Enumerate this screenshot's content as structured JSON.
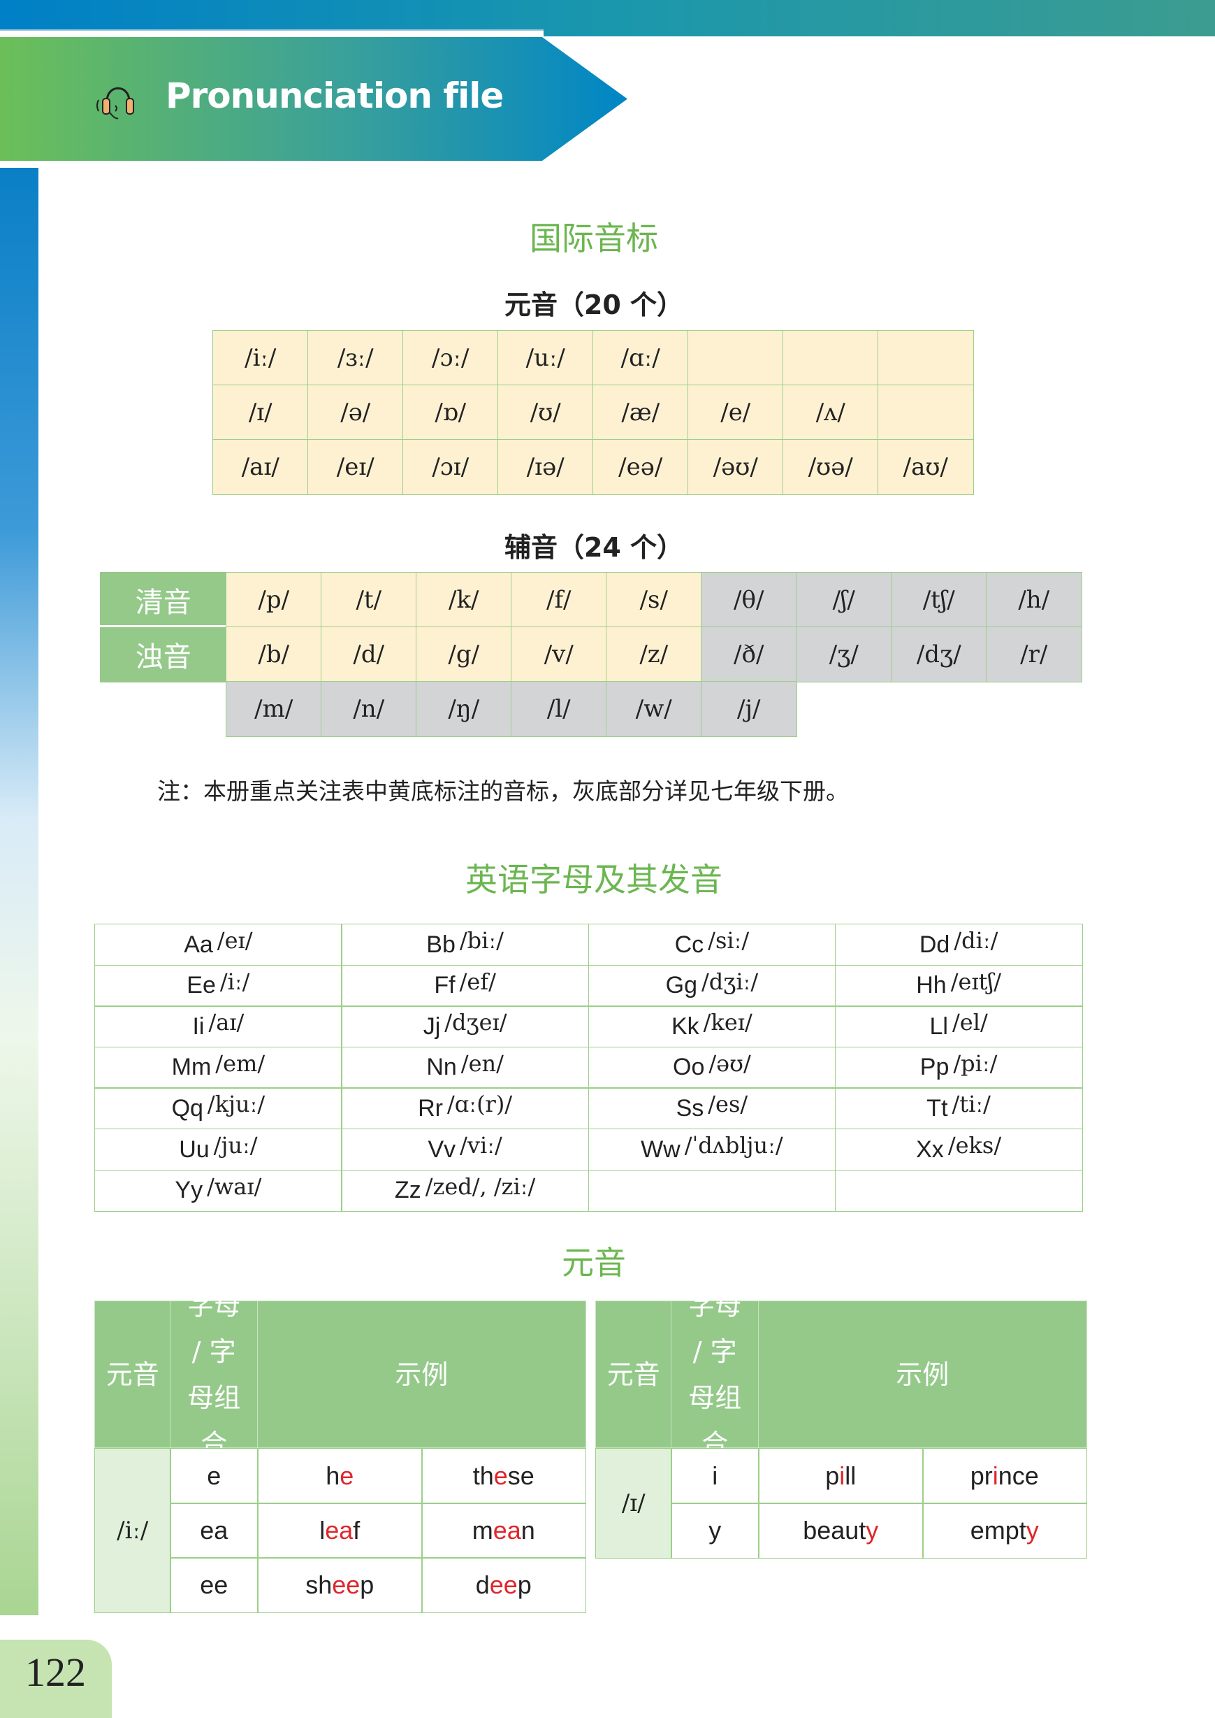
{
  "header": {
    "title": "Pronunciation file",
    "icon": "headset-icon"
  },
  "page_number": "122",
  "ipa_section": {
    "title": "国际音标",
    "vowels_title": "元音（20 个）",
    "vowels": [
      [
        "/iː/",
        "/ɜː/",
        "/ɔː/",
        "/uː/",
        "/ɑː/",
        "",
        "",
        ""
      ],
      [
        "/ɪ/",
        "/ə/",
        "/ɒ/",
        "/ʊ/",
        "/æ/",
        "/e/",
        "/ʌ/",
        ""
      ],
      [
        "/aɪ/",
        "/eɪ/",
        "/ɔɪ/",
        "/ɪə/",
        "/eə/",
        "/əʊ/",
        "/ʊə/",
        "/aʊ/"
      ]
    ],
    "consonants_title": "辅音（24 个）",
    "consonant_rows": [
      {
        "label": "清音",
        "cells": [
          "/p/",
          "/t/",
          "/k/",
          "/f/",
          "/s/",
          "/θ/",
          "/ʃ/",
          "/tʃ/",
          "/h/"
        ]
      },
      {
        "label": "浊音",
        "cells": [
          "/b/",
          "/d/",
          "/g/",
          "/v/",
          "/z/",
          "/ð/",
          "/ʒ/",
          "/dʒ/",
          "/r/"
        ]
      },
      {
        "label": "",
        "cells": [
          "/m/",
          "/n/",
          "/ŋ/",
          "/l/",
          "/w/",
          "/j/"
        ]
      }
    ],
    "note": "注：本册重点关注表中黄底标注的音标，灰底部分详见七年级下册。",
    "colors": {
      "highlight": "#fef1d2",
      "gray": "#d3d4d6",
      "green": "#94c98a"
    }
  },
  "alphabet_section": {
    "title": "英语字母及其发音",
    "letters": [
      [
        "Aa",
        "/eɪ/"
      ],
      [
        "Bb",
        "/biː/"
      ],
      [
        "Cc",
        "/siː/"
      ],
      [
        "Dd",
        "/diː/"
      ],
      [
        "Ee",
        "/iː/"
      ],
      [
        "Ff",
        "/ef/"
      ],
      [
        "Gg",
        "/dʒiː/"
      ],
      [
        "Hh",
        "/eɪtʃ/"
      ],
      [
        "Ii",
        "/aɪ/"
      ],
      [
        "Jj",
        "/dʒeɪ/"
      ],
      [
        "Kk",
        "/keɪ/"
      ],
      [
        "Ll",
        "/el/"
      ],
      [
        "Mm",
        "/em/"
      ],
      [
        "Nn",
        "/en/"
      ],
      [
        "Oo",
        "/əʊ/"
      ],
      [
        "Pp",
        "/piː/"
      ],
      [
        "Qq",
        "/kjuː/"
      ],
      [
        "Rr",
        "/ɑː(r)/"
      ],
      [
        "Ss",
        "/es/"
      ],
      [
        "Tt",
        "/tiː/"
      ],
      [
        "Uu",
        "/juː/"
      ],
      [
        "Vv",
        "/viː/"
      ],
      [
        "Ww",
        "/ˈdʌbljuː/"
      ],
      [
        "Xx",
        "/eks/"
      ],
      [
        "Yy",
        "/waɪ/"
      ],
      [
        "Zz",
        "/zed/, /ziː/"
      ],
      [
        "",
        ""
      ],
      [
        "",
        ""
      ]
    ]
  },
  "vowel_examples_section": {
    "title": "元音",
    "headers": {
      "vowel": "元音",
      "letters": "字母 / 字母组合",
      "examples": "示例"
    },
    "tables": [
      {
        "vowel": "/iː/",
        "rows": [
          {
            "letters": "e",
            "examples": [
              [
                "h",
                "e",
                ""
              ],
              [
                "th",
                "e",
                "se"
              ]
            ]
          },
          {
            "letters": "ea",
            "examples": [
              [
                "l",
                "ea",
                "f"
              ],
              [
                "m",
                "ea",
                "n"
              ]
            ]
          },
          {
            "letters": "ee",
            "examples": [
              [
                "sh",
                "ee",
                "p"
              ],
              [
                "d",
                "ee",
                "p"
              ]
            ]
          }
        ]
      },
      {
        "vowel": "/ɪ/",
        "rows": [
          {
            "letters": "i",
            "examples": [
              [
                "p",
                "i",
                "ll"
              ],
              [
                "pr",
                "i",
                "nce"
              ]
            ]
          },
          {
            "letters": "y",
            "examples": [
              [
                "beaut",
                "y",
                ""
              ],
              [
                "empt",
                "y",
                ""
              ]
            ]
          }
        ]
      }
    ],
    "highlight_color": "#e0262b"
  }
}
